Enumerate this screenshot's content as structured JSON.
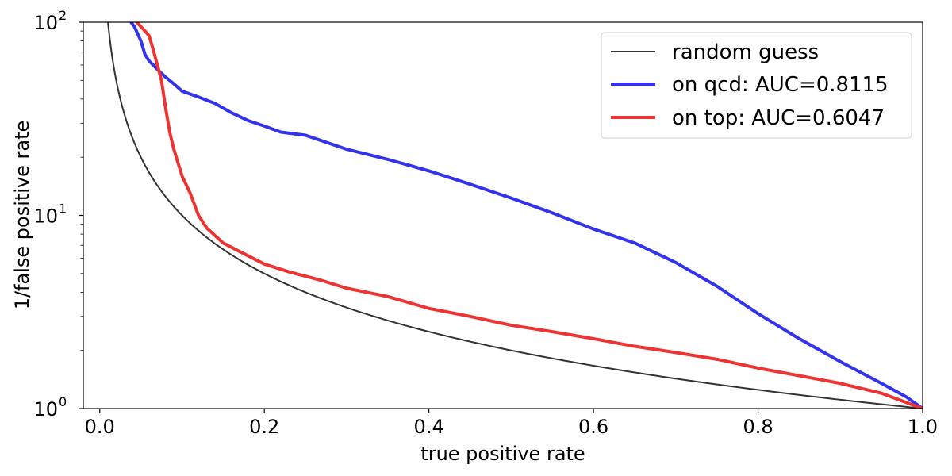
{
  "chart_data": {
    "type": "line",
    "title": "",
    "xlabel": "true positive rate",
    "ylabel": "1/false positive rate",
    "xlim": [
      -0.02,
      1.0
    ],
    "ylim": [
      1,
      100
    ],
    "yscale": "log",
    "grid": false,
    "legend_position": "top-right",
    "x_ticks": [
      {
        "value": 0.0,
        "label": "0.0"
      },
      {
        "value": 0.2,
        "label": "0.2"
      },
      {
        "value": 0.4,
        "label": "0.4"
      },
      {
        "value": 0.6,
        "label": "0.6"
      },
      {
        "value": 0.8,
        "label": "0.8"
      },
      {
        "value": 1.0,
        "label": "1.0"
      }
    ],
    "y_ticks": [
      {
        "value": 1,
        "base": "10",
        "exp": "0"
      },
      {
        "value": 10,
        "base": "10",
        "exp": "1"
      },
      {
        "value": 100,
        "base": "10",
        "exp": "2"
      }
    ],
    "series": [
      {
        "name": "random guess",
        "color": "#333333",
        "linewidth": 2,
        "function": "1/x",
        "x": [
          0.01,
          0.015,
          0.02,
          0.03,
          0.05,
          0.07,
          0.1,
          0.15,
          0.2,
          0.3,
          0.4,
          0.5,
          0.6,
          0.7,
          0.8,
          0.9,
          1.0
        ],
        "values": [
          100,
          66.7,
          50,
          33.3,
          20,
          14.3,
          10,
          6.67,
          5,
          3.33,
          2.5,
          2,
          1.67,
          1.43,
          1.25,
          1.11,
          1.0
        ]
      },
      {
        "name": "on qcd: AUC=0.8115",
        "color": "#3333ee",
        "linewidth": 4,
        "x": [
          0.038,
          0.042,
          0.05,
          0.055,
          0.06,
          0.065,
          0.07,
          0.08,
          0.09,
          0.1,
          0.12,
          0.14,
          0.16,
          0.18,
          0.2,
          0.22,
          0.25,
          0.3,
          0.35,
          0.4,
          0.45,
          0.5,
          0.55,
          0.6,
          0.65,
          0.7,
          0.75,
          0.8,
          0.85,
          0.9,
          0.95,
          0.98,
          1.0
        ],
        "values": [
          100,
          95,
          80,
          68,
          63,
          60,
          57,
          52,
          48,
          44,
          41,
          38,
          34,
          31,
          29,
          27,
          26,
          22,
          19.5,
          17,
          14.5,
          12.3,
          10.3,
          8.5,
          7.2,
          5.7,
          4.3,
          3.1,
          2.3,
          1.75,
          1.35,
          1.15,
          1.0
        ]
      },
      {
        "name": "on top: AUC=0.6047",
        "color": "#ee3333",
        "linewidth": 4,
        "x": [
          0.045,
          0.055,
          0.06,
          0.065,
          0.07,
          0.075,
          0.08,
          0.085,
          0.09,
          0.1,
          0.11,
          0.12,
          0.13,
          0.15,
          0.17,
          0.2,
          0.23,
          0.27,
          0.3,
          0.35,
          0.4,
          0.45,
          0.5,
          0.55,
          0.6,
          0.65,
          0.7,
          0.75,
          0.8,
          0.85,
          0.9,
          0.95,
          1.0
        ],
        "values": [
          100,
          90,
          85,
          72,
          60,
          50,
          36,
          27,
          22,
          16,
          13,
          10,
          8.6,
          7.2,
          6.5,
          5.6,
          5.1,
          4.6,
          4.2,
          3.8,
          3.3,
          3.0,
          2.7,
          2.5,
          2.3,
          2.1,
          1.95,
          1.8,
          1.62,
          1.48,
          1.35,
          1.2,
          1.0
        ]
      }
    ]
  }
}
